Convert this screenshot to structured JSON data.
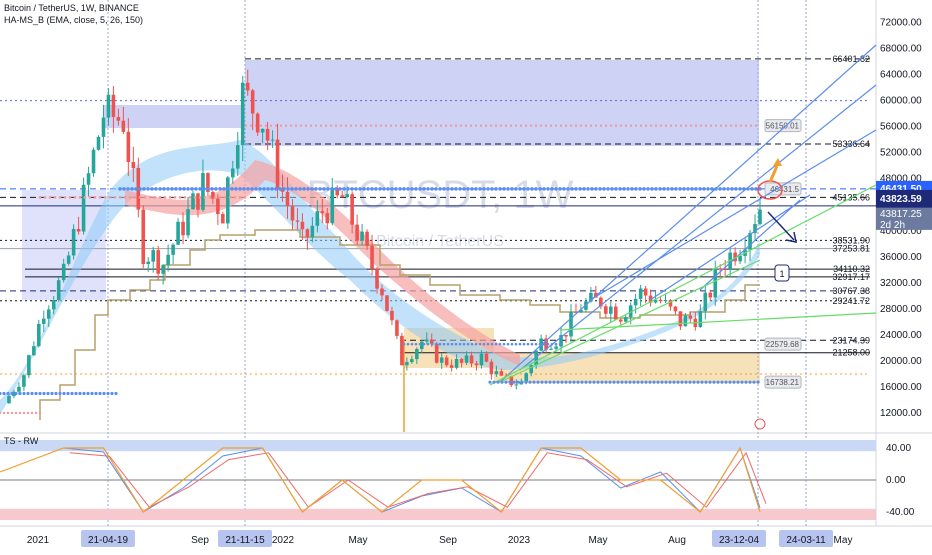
{
  "header": {
    "symbol_line": "Bitcoin / TetherUS, 1W, BINANCE",
    "indicator_line": "HA-MS_B (EMA, close, 5, 26, 150)",
    "oscillator_label": "TS - RW"
  },
  "watermark": {
    "ticker": "BTCUSDT, 1W",
    "name": "Bitcoin / TetherUS"
  },
  "colors": {
    "bull": "#26a69a",
    "bear": "#ef5350",
    "blue_line": "#2962ff",
    "trend_blue": "#5b8def",
    "trend_green": "#66dd66",
    "kijun": "#b5a06b",
    "ema_blue": "#90caf9",
    "ema_red": "#f5a3a3",
    "dots_blue": "#5b8def",
    "dots_red": "#ef9a9a",
    "zone_blue": "#c5cbf5",
    "zone_orange": "#f5d9a8",
    "osc_blue": "#5b8def",
    "osc_red": "#ef6b6b",
    "osc_orange": "#f0a030",
    "band_blue": "#c9d8f5",
    "band_red": "#f5c9cd"
  },
  "price_axis": {
    "ticks": [
      "72000.00",
      "68000.00",
      "64000.00",
      "60000.00",
      "56000.00",
      "52000.00",
      "48000.00",
      "44000.00",
      "40000.00",
      "36000.00",
      "32000.00",
      "28000.00",
      "24000.00",
      "20000.00",
      "16000.00",
      "12000.00"
    ],
    "current_price": "43823.59",
    "countdown": "2d 2h",
    "upper_tag": "46431.50",
    "inner_tag": "43817.25"
  },
  "level_labels": [
    {
      "text": "66401.82",
      "price": 66401.82
    },
    {
      "text": "53336.64",
      "price": 53336.64
    },
    {
      "text": "45135.66",
      "price": 45135.66
    },
    {
      "text": "38531.90",
      "price": 38531.9
    },
    {
      "text": "37253.81",
      "price": 37253.81
    },
    {
      "text": "34110.32",
      "price": 34110.32
    },
    {
      "text": "32917.17",
      "price": 32917.17
    },
    {
      "text": "30767.38",
      "price": 30767.38
    },
    {
      "text": "29241.72",
      "price": 29241.72
    },
    {
      "text": "23174.39",
      "price": 23174.39
    },
    {
      "text": "21258.00",
      "price": 21258.0
    }
  ],
  "badges": [
    {
      "text": "56150.01",
      "price": 56150.01
    },
    {
      "text": "46431.5",
      "price": 46431.5
    },
    {
      "text": "22579.68",
      "price": 22579.68
    },
    {
      "text": "16738.21",
      "price": 16738.21
    }
  ],
  "annotations": {
    "wave_label": "1"
  },
  "oscillator_axis": {
    "ticks": [
      "40.00",
      "0.00",
      "-40.00"
    ]
  },
  "time_axis": {
    "labels": [
      "2021",
      "Sep",
      "2022",
      "May",
      "Sep",
      "2023",
      "May",
      "Aug",
      "May"
    ],
    "highlighted": [
      "21-04-19",
      "21-11-15",
      "23-12-04",
      "24-03-11"
    ]
  },
  "chart_data": {
    "type": "line",
    "title": "Bitcoin / TetherUS, 1W, BINANCE",
    "xlabel": "",
    "ylabel": "",
    "ylim": [
      10000,
      74000
    ],
    "series": [
      {
        "name": "Bitcoin / TetherUS",
        "x": [
          "2020-10",
          "2020-11",
          "2020-12",
          "2021-01",
          "2021-02",
          "2021-03",
          "2021-04",
          "2021-05",
          "2021-06",
          "2021-07",
          "2021-08",
          "2021-09",
          "2021-10",
          "2021-11",
          "2021-12",
          "2022-01",
          "2022-02",
          "2022-03",
          "2022-04",
          "2022-05",
          "2022-06",
          "2022-07",
          "2022-08",
          "2022-09",
          "2022-10",
          "2022-11",
          "2022-12",
          "2023-01",
          "2023-02",
          "2023-03",
          "2023-04",
          "2023-05",
          "2023-06",
          "2023-07",
          "2023-08",
          "2023-09",
          "2023-10",
          "2023-11",
          "2023-12"
        ],
        "values": [
          13500,
          18000,
          28000,
          33000,
          45000,
          58000,
          57000,
          37000,
          35000,
          41000,
          47000,
          43000,
          61000,
          57000,
          46000,
          38000,
          43000,
          45000,
          38000,
          31000,
          20000,
          23000,
          20000,
          19500,
          20500,
          17000,
          16600,
          23000,
          23500,
          28500,
          29300,
          27200,
          30500,
          29200,
          26000,
          27000,
          34500,
          38000,
          43800
        ]
      }
    ],
    "oscillator": {
      "name": "TS - RW",
      "range": [
        -50,
        50
      ],
      "x": [
        "2021-01",
        "2021-03",
        "2021-05",
        "2021-07",
        "2021-09",
        "2021-11",
        "2022-01",
        "2022-03",
        "2022-05",
        "2022-07",
        "2022-09",
        "2022-11",
        "2023-01",
        "2023-03",
        "2023-05",
        "2023-07",
        "2023-09",
        "2023-11",
        "2023-12"
      ],
      "values": [
        40,
        35,
        -40,
        -10,
        30,
        40,
        -40,
        0,
        -40,
        -20,
        -10,
        -40,
        40,
        30,
        -10,
        10,
        -40,
        40,
        -35
      ]
    }
  }
}
